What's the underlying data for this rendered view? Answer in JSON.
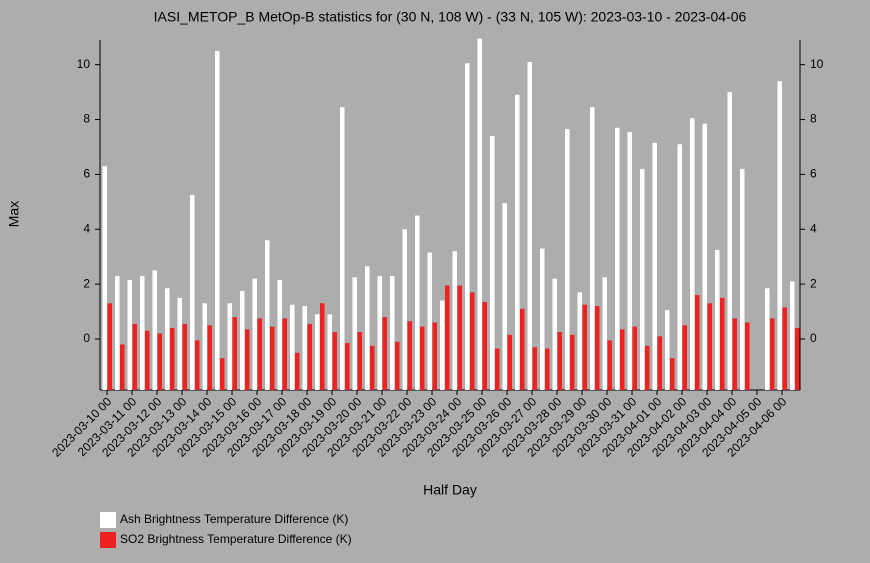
{
  "chart_data": {
    "type": "bar",
    "title": "IASI_METOP_B MetOp-B statistics for (30 N, 108 W) - (33 N, 105 W): 2023-03-10 - 2023-04-06",
    "x_label": "Half Day",
    "y_label": "Max",
    "categories": [
      "2023-03-10 00",
      null,
      "2023-03-11 00",
      null,
      "2023-03-12 00",
      null,
      "2023-03-13 00",
      null,
      "2023-03-14 00",
      null,
      "2023-03-15 00",
      null,
      "2023-03-16 00",
      null,
      "2023-03-17 00",
      null,
      "2023-03-18 00",
      null,
      "2023-03-19 00",
      null,
      "2023-03-20 00",
      null,
      "2023-03-21 00",
      null,
      "2023-03-22 00",
      null,
      "2023-03-23 00",
      null,
      "2023-03-24 00",
      null,
      "2023-03-25 00",
      null,
      "2023-03-26 00",
      null,
      "2023-03-27 00",
      null,
      "2023-03-28 00",
      null,
      "2023-03-29 00",
      null,
      "2023-03-30 00",
      null,
      "2023-03-31 00",
      null,
      "2023-04-01 00",
      null,
      "2023-04-02 00",
      null,
      "2023-04-03 00",
      null,
      "2023-04-04 00",
      null,
      "2023-04-05 00",
      null,
      "2023-04-06 00",
      null
    ],
    "series": [
      {
        "name": "Ash Brightness Temperature Difference (K)",
        "color": "#ffffff",
        "values": [
          6.3,
          2.3,
          2.15,
          2.3,
          2.5,
          1.85,
          1.5,
          5.25,
          1.3,
          10.5,
          1.3,
          1.75,
          2.2,
          3.6,
          2.15,
          1.25,
          1.2,
          0.9,
          0.9,
          8.45,
          2.25,
          2.65,
          2.3,
          2.3,
          4.0,
          4.5,
          3.15,
          1.4,
          3.2,
          10.05,
          10.95,
          7.4,
          4.95,
          8.9,
          10.1,
          3.3,
          2.2,
          7.65,
          1.7,
          8.45,
          2.25,
          7.7,
          7.55,
          6.2,
          7.15,
          1.05,
          7.1,
          8.05,
          7.85,
          3.25,
          9.0,
          6.2,
          null,
          1.85,
          9.4,
          2.1
        ]
      },
      {
        "name": "SO2 Brightness Temperature Difference (K)",
        "color": "#ee2222",
        "values": [
          1.3,
          -0.2,
          0.55,
          0.3,
          0.2,
          0.4,
          0.55,
          -0.05,
          0.5,
          -0.7,
          0.8,
          0.35,
          0.75,
          0.45,
          0.75,
          -0.5,
          0.55,
          1.3,
          0.25,
          -0.15,
          0.25,
          -0.25,
          0.8,
          -0.1,
          0.65,
          0.45,
          0.6,
          1.95,
          1.95,
          1.7,
          1.35,
          -0.35,
          0.15,
          1.1,
          -0.3,
          -0.35,
          0.25,
          0.15,
          1.25,
          1.2,
          -0.05,
          0.35,
          0.45,
          -0.25,
          0.1,
          -0.7,
          0.5,
          1.6,
          1.3,
          1.5,
          0.75,
          0.6,
          null,
          0.75,
          1.15,
          0.4
        ]
      }
    ],
    "ylim": [
      -1.86,
      10.9
    ],
    "yticks": [
      0,
      2,
      4,
      6,
      8,
      10
    ],
    "grid": false
  }
}
